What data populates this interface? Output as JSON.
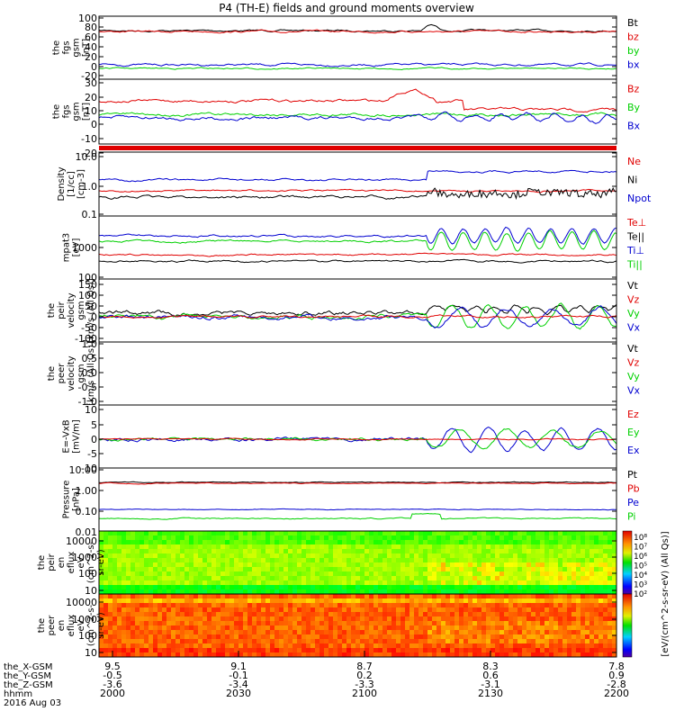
{
  "title": "P4 (TH-E) fields and ground moments overview",
  "colors": {
    "black": "#000000",
    "red": "#e00000",
    "green": "#00d000",
    "blue": "#0000d0"
  },
  "chart_data": {
    "type": "line",
    "x_tick_labels": {
      "rows": [
        {
          "name": "the_X-GSM",
          "values": [
            "9.5",
            "9.1",
            "8.7",
            "8.3",
            "7.8"
          ]
        },
        {
          "name": "the_Y-GSM",
          "values": [
            "-0.5",
            "-0.1",
            "0.2",
            "0.6",
            "0.9"
          ]
        },
        {
          "name": "the_Z-GSM",
          "values": [
            "-3.6",
            "-3.4",
            "-3.3",
            "-3.1",
            "-2.8"
          ]
        },
        {
          "name": "hhmm",
          "values": [
            "2000",
            "2030",
            "2100",
            "2130",
            "2200"
          ]
        }
      ],
      "date": "2016 Aug 03"
    },
    "panels": [
      {
        "id": "fgs_gsm",
        "ylabel": [
          "the",
          "fgs",
          "gsm",
          "[nT]"
        ],
        "scale": "linear",
        "ylim": [
          -20,
          100
        ],
        "ticks": [
          "100",
          "80",
          "60",
          "40",
          "20",
          "0",
          "-20"
        ],
        "series": [
          {
            "name": "Bt",
            "color": "black"
          },
          {
            "name": "bz",
            "color": "red"
          },
          {
            "name": "by",
            "color": "green"
          },
          {
            "name": "bx",
            "color": "blue"
          }
        ]
      },
      {
        "id": "fgs_dsl",
        "ylabel": [
          "the",
          "fgs",
          "gsm",
          "[nT]"
        ],
        "scale": "linear",
        "ylim": [
          -25,
          30
        ],
        "ticks": [
          "30",
          "20",
          "10",
          "0",
          "-10",
          "-20"
        ],
        "series": [
          {
            "name": "Bz",
            "color": "red"
          },
          {
            "name": "By",
            "color": "green"
          },
          {
            "name": "Bx",
            "color": "blue"
          }
        ]
      },
      {
        "id": "density",
        "ylabel": [
          "Density",
          "[1/cc]",
          "[cm-3]"
        ],
        "scale": "log",
        "ylim": [
          0.1,
          10
        ],
        "ticks": [
          "10.0",
          "1.0",
          "0.1"
        ],
        "series": [
          {
            "name": "Ne",
            "color": "red"
          },
          {
            "name": "Ni",
            "color": "black"
          },
          {
            "name": "Npot",
            "color": "blue"
          }
        ]
      },
      {
        "id": "temperature",
        "ylabel": [
          "mpat3",
          "[eV]"
        ],
        "scale": "log",
        "ylim": [
          100,
          10000
        ],
        "ticks": [
          "1000",
          "100"
        ],
        "series": [
          {
            "name": "Te⊥",
            "color": "red"
          },
          {
            "name": "Te||",
            "color": "black"
          },
          {
            "name": "Ti⊥",
            "color": "blue"
          },
          {
            "name": "Ti||",
            "color": "green"
          }
        ]
      },
      {
        "id": "peir_velocity",
        "ylabel": [
          "the",
          "peir",
          "velocity",
          "gsm",
          "[km/s (All Qs)]"
        ],
        "scale": "linear",
        "ylim": [
          -100,
          150
        ],
        "ticks": [
          "150",
          "100",
          "50",
          "0",
          "-50",
          "-100"
        ],
        "series": [
          {
            "name": "Vt",
            "color": "black"
          },
          {
            "name": "Vz",
            "color": "red"
          },
          {
            "name": "Vy",
            "color": "green"
          },
          {
            "name": "Vx",
            "color": "blue"
          }
        ]
      },
      {
        "id": "peer_velocity",
        "ylabel": [
          "the",
          "peer",
          "velocity",
          "gsm",
          "[km/s (All Qs)]"
        ],
        "scale": "linear",
        "ylim": [
          -1,
          1
        ],
        "ticks": [
          "1.0",
          "0.5",
          "0.0",
          "-0.5",
          "-1.0"
        ],
        "series": [
          {
            "name": "Vt",
            "color": "black"
          },
          {
            "name": "Vz",
            "color": "red"
          },
          {
            "name": "Vy",
            "color": "green"
          },
          {
            "name": "Vx",
            "color": "blue"
          }
        ]
      },
      {
        "id": "efield",
        "ylabel": [
          "E=-VxB",
          "[mV/m]"
        ],
        "scale": "linear",
        "ylim": [
          -10,
          10
        ],
        "ticks": [
          "10",
          "5",
          "0",
          "-5",
          "-10"
        ],
        "series": [
          {
            "name": "Ez",
            "color": "red"
          },
          {
            "name": "Ey",
            "color": "green"
          },
          {
            "name": "Ex",
            "color": "blue"
          }
        ]
      },
      {
        "id": "pressure",
        "ylabel": [
          "Pressure",
          "[nPa]"
        ],
        "scale": "log",
        "ylim": [
          0.01,
          10
        ],
        "ticks": [
          "10.00",
          "1.00",
          "0.10",
          "0.01"
        ],
        "series": [
          {
            "name": "Pt",
            "color": "black"
          },
          {
            "name": "Pb",
            "color": "red"
          },
          {
            "name": "Pe",
            "color": "blue"
          },
          {
            "name": "Pi",
            "color": "green"
          }
        ]
      },
      {
        "id": "peir_eflux",
        "type": "heatmap",
        "ylabel": [
          "the",
          "peir",
          "en",
          "eflux",
          "eV",
          "(cm^2-s-",
          "sr-eV)"
        ],
        "scale": "log",
        "ylim": [
          5,
          25000
        ],
        "ticks": [
          "10000",
          "1000",
          "100",
          "10"
        ]
      },
      {
        "id": "peer_eflux",
        "type": "heatmap",
        "ylabel": [
          "the",
          "peer",
          "en",
          "eflux",
          "eV",
          "(cm^2-s-",
          "sr-eV)"
        ],
        "scale": "log",
        "ylim": [
          5,
          25000
        ],
        "ticks": [
          "10000",
          "1000",
          "100",
          "10"
        ]
      }
    ],
    "colorbar": {
      "ticks": [
        "10⁸",
        "10⁷",
        "10⁶",
        "10⁵",
        "10⁴",
        "10³",
        "10²"
      ],
      "label": "[eV/(cm^2-s-sr-eV) (All Qs)]"
    }
  }
}
